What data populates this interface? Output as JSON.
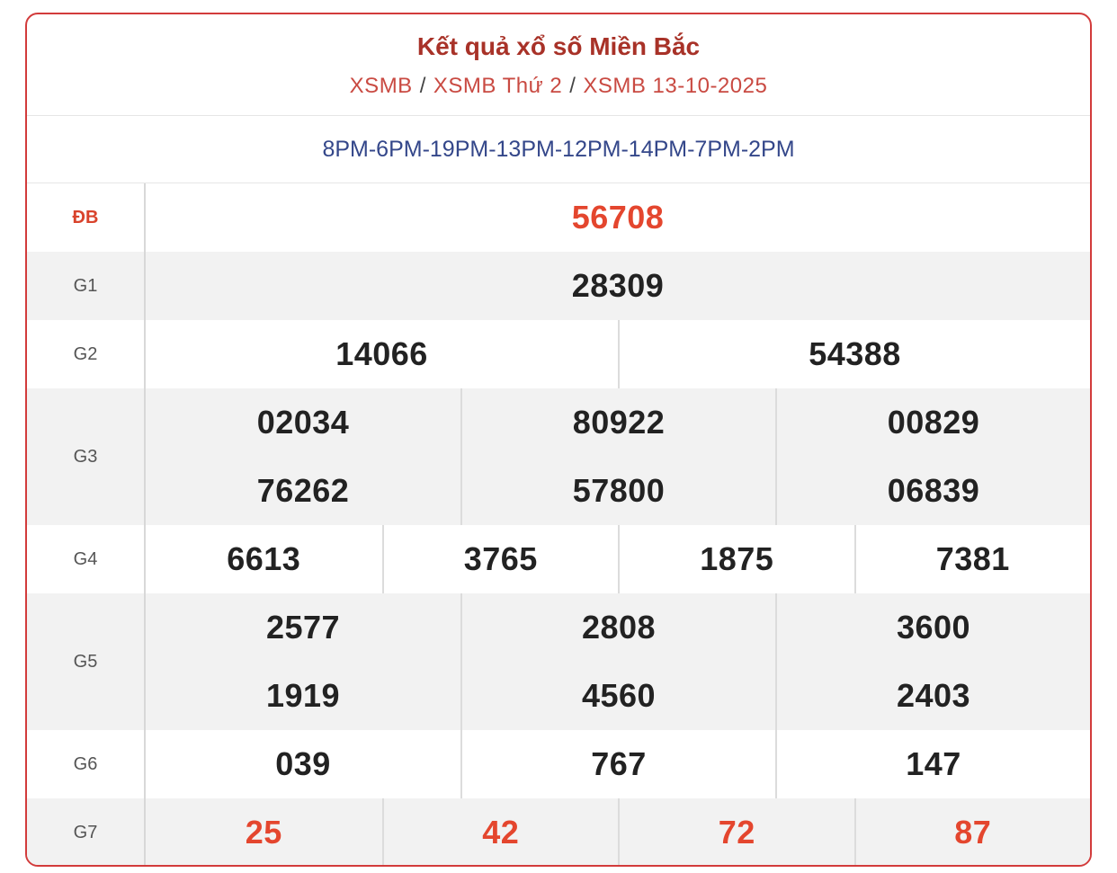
{
  "header": {
    "title": "Kết quả xổ số Miền Bắc",
    "links": [
      "XSMB",
      "XSMB Thứ 2",
      "XSMB 13-10-2025"
    ],
    "separator": "/"
  },
  "codes": "8PM-6PM-19PM-13PM-12PM-14PM-7PM-2PM",
  "prizes": [
    {
      "label": "ĐB",
      "rows": [
        [
          "56708"
        ]
      ]
    },
    {
      "label": "G1",
      "rows": [
        [
          "28309"
        ]
      ]
    },
    {
      "label": "G2",
      "rows": [
        [
          "14066",
          "54388"
        ]
      ]
    },
    {
      "label": "G3",
      "rows": [
        [
          "02034",
          "80922",
          "00829"
        ],
        [
          "76262",
          "57800",
          "06839"
        ]
      ]
    },
    {
      "label": "G4",
      "rows": [
        [
          "6613",
          "3765",
          "1875",
          "7381"
        ]
      ]
    },
    {
      "label": "G5",
      "rows": [
        [
          "2577",
          "2808",
          "3600"
        ],
        [
          "1919",
          "4560",
          "2403"
        ]
      ]
    },
    {
      "label": "G6",
      "rows": [
        [
          "039",
          "767",
          "147"
        ]
      ]
    },
    {
      "label": "G7",
      "rows": [
        [
          "25",
          "42",
          "72",
          "87"
        ]
      ]
    }
  ]
}
